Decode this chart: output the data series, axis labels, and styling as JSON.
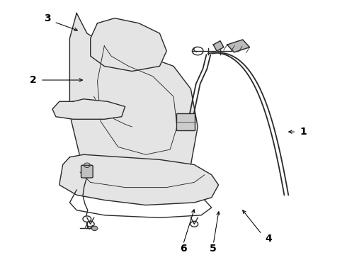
{
  "bg_color": "#ffffff",
  "line_color": "#2a2a2a",
  "label_color": "#000000",
  "label_fontsize": 10,
  "lw_main": 1.0,
  "lw_belt": 1.3,
  "lw_thin": 0.65,
  "seat_fill": "#e4e4e4",
  "bracket_fill": "#bbbbbb"
}
